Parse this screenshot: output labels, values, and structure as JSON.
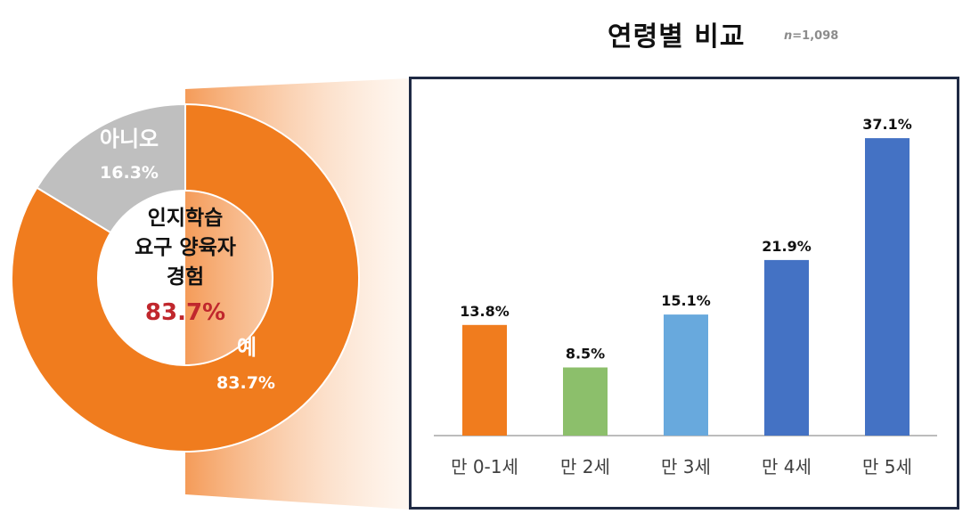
{
  "title": "연령별 비교",
  "sample": {
    "prefix": "n",
    "suffix": "=1,098"
  },
  "donut": {
    "center_lines": [
      "인지학습",
      "요구 양육자",
      "경험"
    ],
    "center_value": "83.7%",
    "center_value_color": "#c0272d",
    "slices": [
      {
        "label": "예",
        "value": 83.7,
        "value_label": "83.7%",
        "color": "#f07c1e"
      },
      {
        "label": "아니오",
        "value": 16.3,
        "value_label": "16.3%",
        "color": "#bfbfbf"
      }
    ]
  },
  "chart_data": [
    {
      "type": "pie",
      "categories": [
        "예",
        "아니오"
      ],
      "values": [
        83.7,
        16.3
      ],
      "colors": [
        "#f07c1e",
        "#bfbfbf"
      ]
    },
    {
      "type": "bar",
      "title": "연령별 비교",
      "categories": [
        "만 0-1세",
        "만 2세",
        "만 3세",
        "만 4세",
        "만 5세"
      ],
      "values": [
        13.8,
        8.5,
        15.1,
        21.9,
        37.1
      ],
      "data_labels": [
        "13.8%",
        "8.5%",
        "15.1%",
        "21.9%",
        "37.1%"
      ],
      "colors": [
        "#f07c1e",
        "#8cbf6b",
        "#68a9dd",
        "#4472c4",
        "#4472c4"
      ],
      "ylim": [
        0,
        40
      ],
      "grid": false
    }
  ]
}
